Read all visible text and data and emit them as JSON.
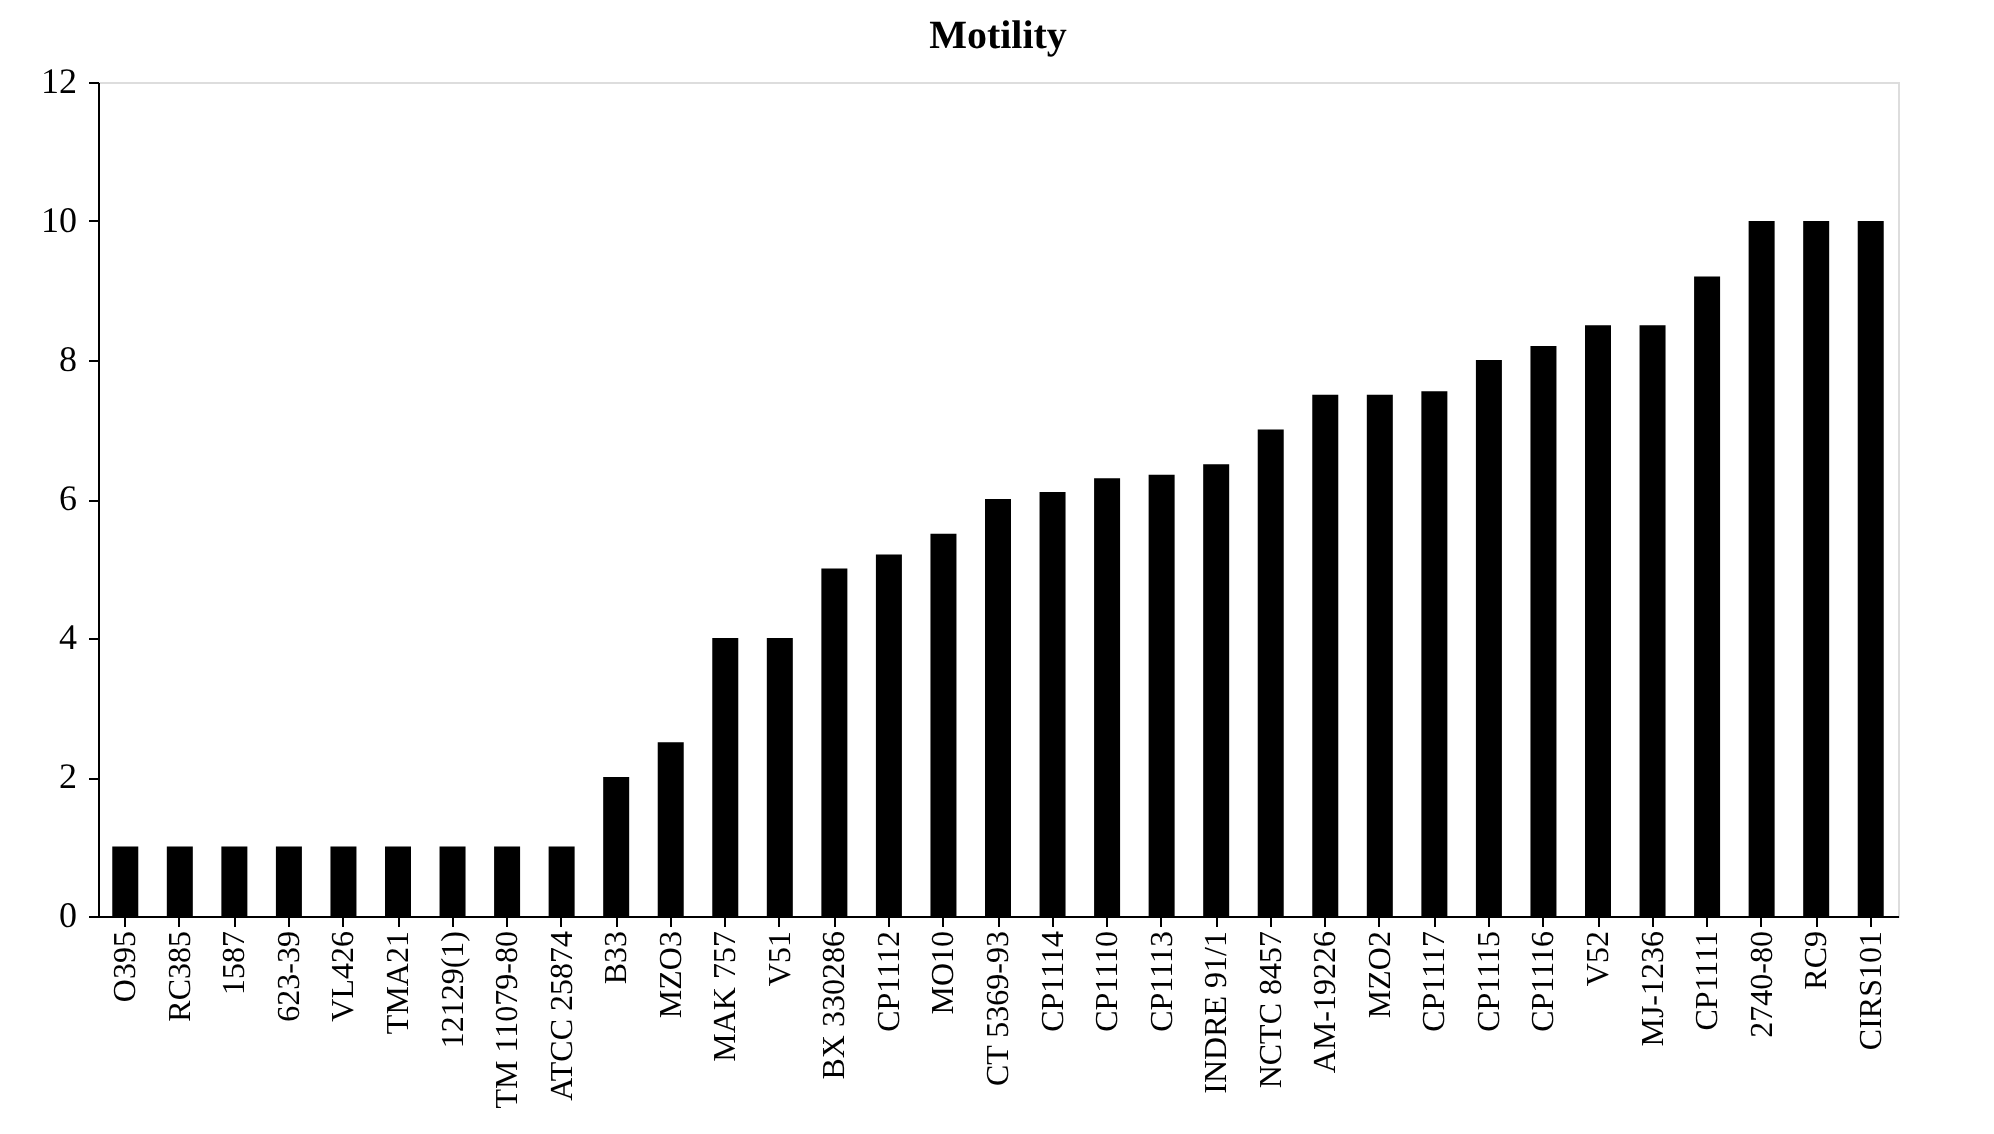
{
  "chart_data": {
    "type": "bar",
    "title": "Motility",
    "categories": [
      "O395",
      "RC385",
      "1587",
      "623-39",
      "VL426",
      "TMA21",
      "12129(1)",
      "TM 11079-80",
      "ATCC 25874",
      "B33",
      "MZO3",
      "MAK 757",
      "V51",
      "BX 330286",
      "CP1112",
      "MO10",
      "CT 5369-93",
      "CP1114",
      "CP1110",
      "CP1113",
      "INDRE 91/1",
      "NCTC 8457",
      "AM-19226",
      "MZO2",
      "CP1117",
      "CP1115",
      "CP1116",
      "V52",
      "MJ-1236",
      "CP1111",
      "2740-80",
      "RC9",
      "CIRS101"
    ],
    "values": [
      1,
      1,
      1,
      1,
      1,
      1,
      1,
      1,
      1,
      2,
      2.5,
      4,
      4,
      5,
      5.2,
      5.5,
      6,
      6.1,
      6.3,
      6.35,
      6.5,
      7,
      7.5,
      7.5,
      7.55,
      8,
      8.2,
      8.5,
      8.5,
      9.2,
      10,
      10,
      10
    ],
    "color": "#000000",
    "ylim": [
      0,
      12
    ],
    "yticks": [
      0,
      2,
      4,
      6,
      8,
      10,
      12
    ],
    "grid": false
  }
}
